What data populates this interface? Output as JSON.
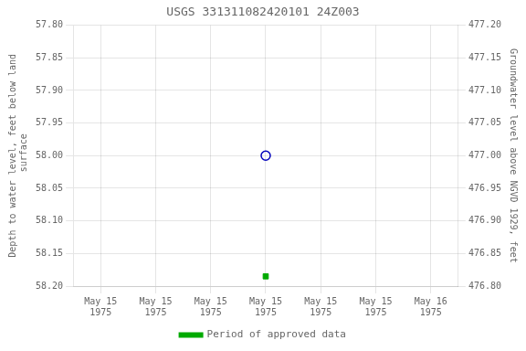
{
  "chart_data": {
    "type": "scatter",
    "title": "USGS 331311082420101 24Z003",
    "ylabel": "Depth to water level, feet below land\n surface",
    "y2label": "Groundwater level above NGVD 1929, feet",
    "categories": [
      "May 15\n1975",
      "May 15\n1975",
      "May 15\n1975",
      "May 15\n1975",
      "May 15\n1975",
      "May 15\n1975",
      "May 16\n1975"
    ],
    "series": [
      {
        "color": "#0000bb",
        "marker": "open_circle",
        "values": [
          null,
          null,
          null,
          58.0,
          null,
          null,
          null
        ]
      },
      {
        "name": "Period of approved data",
        "color": "#00aa00",
        "marker": "square",
        "values": [
          null,
          null,
          null,
          58.185,
          null,
          null,
          null
        ]
      }
    ],
    "ylim": [
      58.2,
      57.8
    ],
    "yticks": [
      {
        "value": 57.8,
        "label": "57.80"
      },
      {
        "value": 57.85,
        "label": "57.85"
      },
      {
        "value": 57.9,
        "label": "57.90"
      },
      {
        "value": 57.95,
        "label": "57.95"
      },
      {
        "value": 58.0,
        "label": "58.00"
      },
      {
        "value": 58.05,
        "label": "58.05"
      },
      {
        "value": 58.1,
        "label": "58.10"
      },
      {
        "value": 58.15,
        "label": "58.15"
      },
      {
        "value": 58.2,
        "label": "58.20"
      }
    ],
    "y2lim": [
      476.8,
      477.2
    ],
    "y2ticks": [
      {
        "value": 477.2,
        "label": "477.20"
      },
      {
        "value": 477.15,
        "label": "477.15"
      },
      {
        "value": 477.1,
        "label": "477.10"
      },
      {
        "value": 477.05,
        "label": "477.05"
      },
      {
        "value": 477.0,
        "label": "477.00"
      },
      {
        "value": 476.95,
        "label": "476.95"
      },
      {
        "value": 476.9,
        "label": "476.90"
      },
      {
        "value": 476.85,
        "label": "476.85"
      },
      {
        "value": 476.8,
        "label": "476.80"
      }
    ],
    "grid": true,
    "legend": "bottom"
  }
}
